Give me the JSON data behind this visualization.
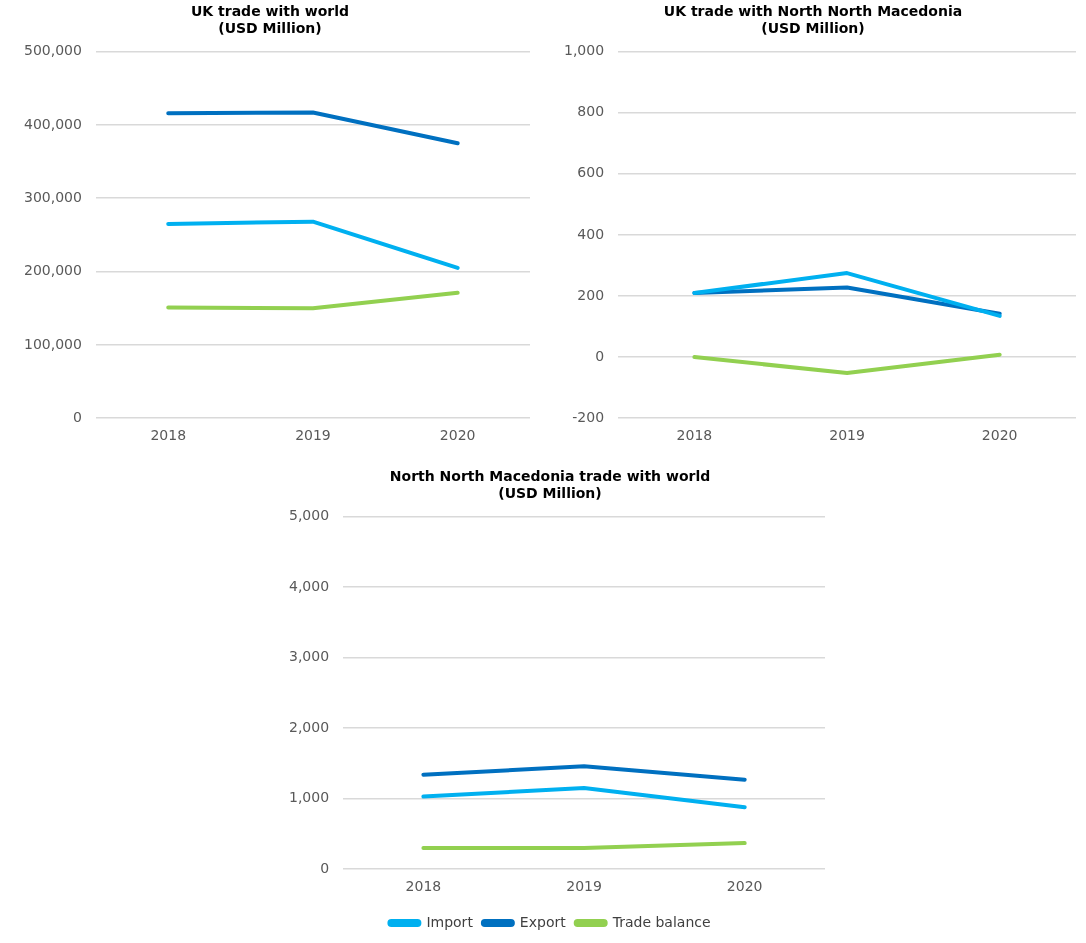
{
  "chart_data": [
    {
      "type": "line",
      "title": "UK trade with world",
      "subtitle": "(USD Million)",
      "categories": [
        "2018",
        "2019",
        "2020"
      ],
      "series": [
        {
          "color": "#00b0f0",
          "values": [
            265000,
            268000,
            205000
          ]
        },
        {
          "color": "#0070c0",
          "values": [
            416000,
            417000,
            375000
          ]
        },
        {
          "color": "#92d050",
          "values": [
            151000,
            150000,
            171000
          ]
        }
      ],
      "ylim": [
        0,
        500000
      ],
      "yticks": [
        0,
        {
          "value": 100000,
          "label": "100,000"
        },
        {
          "value": 200000,
          "label": "200,000"
        },
        {
          "value": 300000,
          "label": "300,000"
        },
        {
          "value": 400000,
          "label": "400,000"
        },
        {
          "value": 500000,
          "label": "500,000"
        }
      ],
      "grid": "y",
      "legend": false,
      "marker": "none",
      "line_style": "solid"
    },
    {
      "type": "line",
      "title": "UK trade with North North Macedonia",
      "subtitle": "(USD Million)",
      "categories": [
        "2018",
        "2019",
        "2020"
      ],
      "series": [
        {
          "color": "#00b0f0",
          "values": [
            210,
            275,
            135
          ]
        },
        {
          "color": "#0070c0",
          "values": [
            210,
            228,
            142
          ]
        },
        {
          "color": "#92d050",
          "values": [
            0,
            -52,
            8
          ]
        }
      ],
      "ylim": [
        -200,
        1000
      ],
      "yticks": [
        -200,
        0,
        200,
        400,
        600,
        800,
        {
          "value": 1000,
          "label": "1,000"
        }
      ],
      "grid": "y",
      "legend": false,
      "marker": "none",
      "line_style": "solid"
    },
    {
      "type": "line",
      "title": "North North Macedonia trade with world",
      "subtitle": "(USD Million)",
      "categories": [
        "2018",
        "2019",
        "2020"
      ],
      "series": [
        {
          "name": "Import",
          "color": "#00b0f0",
          "values": [
            1030,
            1150,
            880
          ]
        },
        {
          "name": "Export",
          "color": "#0070c0",
          "values": [
            1340,
            1460,
            1270
          ]
        },
        {
          "name": "Trade balance",
          "color": "#92d050",
          "values": [
            300,
            300,
            370
          ]
        }
      ],
      "ylim": [
        0,
        5000
      ],
      "yticks": [
        0,
        {
          "value": 1000,
          "label": "1,000"
        },
        {
          "value": 2000,
          "label": "2,000"
        },
        {
          "value": 3000,
          "label": "3,000"
        },
        {
          "value": 4000,
          "label": "4,000"
        },
        {
          "value": 5000,
          "label": "5,000"
        }
      ],
      "grid": "y",
      "legend": "bottom",
      "marker": "none",
      "line_style": "solid"
    }
  ]
}
